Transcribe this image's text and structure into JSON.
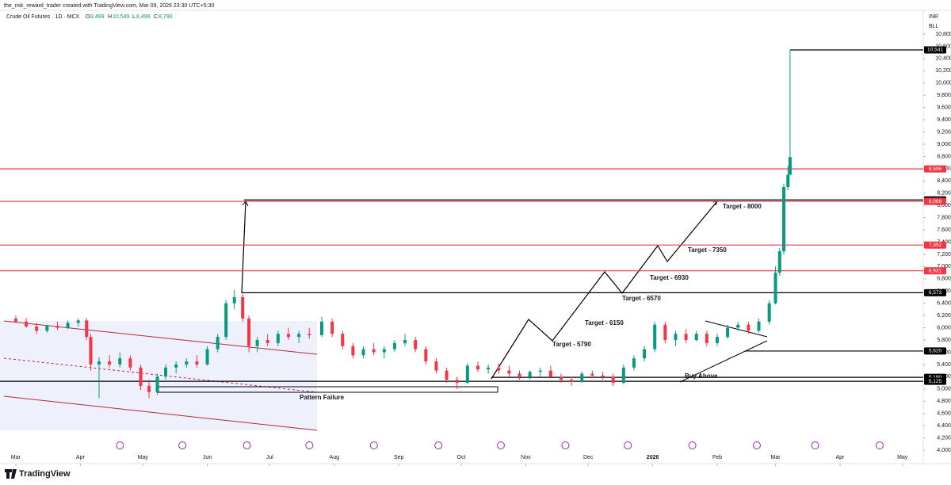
{
  "header": {
    "byline": "the_risk_reward_trader created with TradingView.com, Mar 09, 2026 23:30 UTC+5:30",
    "symbol": "Crude Oil Futures · 1D · MCX",
    "open_label": "O",
    "open": "8,499",
    "high_label": "H",
    "high": "10,549",
    "low_label": "L",
    "low": "8,499",
    "close_label": "C",
    "close": "8,790",
    "currency": "INR",
    "unit": "BLL"
  },
  "footer": {
    "brand": "TradingView"
  },
  "chart_data": {
    "type": "candlestick",
    "up_color": "#089981",
    "down_color": "#f23645",
    "xlim": [
      -7.6,
      436
    ],
    "ylim": [
      4000,
      10800
    ],
    "xticks": [
      {
        "value": 0,
        "label": "Mar"
      },
      {
        "value": 31,
        "label": "Apr"
      },
      {
        "value": 61,
        "label": "May"
      },
      {
        "value": 92,
        "label": "Jun"
      },
      {
        "value": 122,
        "label": "Jul"
      },
      {
        "value": 153,
        "label": "Aug"
      },
      {
        "value": 184,
        "label": "Sep"
      },
      {
        "value": 214,
        "label": "Oct"
      },
      {
        "value": 245,
        "label": "Nov"
      },
      {
        "value": 275,
        "label": "Dec"
      },
      {
        "value": 306,
        "label": "2026"
      },
      {
        "value": 337,
        "label": "Feb"
      },
      {
        "value": 365,
        "label": "Mar"
      },
      {
        "value": 396,
        "label": "Apr"
      },
      {
        "value": 426,
        "label": "May"
      }
    ],
    "yticks": [
      {
        "value": 4000,
        "label": "4,000"
      },
      {
        "value": 4200,
        "label": "4,200"
      },
      {
        "value": 4400,
        "label": "4,400"
      },
      {
        "value": 4600,
        "label": "4,600"
      },
      {
        "value": 4800,
        "label": "4,800"
      },
      {
        "value": 5000,
        "label": "5,000"
      },
      {
        "value": 5200,
        "label": "5,200"
      },
      {
        "value": 5400,
        "label": "5,400"
      },
      {
        "value": 5600,
        "label": "5,600"
      },
      {
        "value": 5800,
        "label": "5,800"
      },
      {
        "value": 6000,
        "label": "6,000"
      },
      {
        "value": 6200,
        "label": "6,200"
      },
      {
        "value": 6400,
        "label": "6,400"
      },
      {
        "value": 6600,
        "label": "6,600"
      },
      {
        "value": 6800,
        "label": "6,800"
      },
      {
        "value": 7000,
        "label": "7,000"
      },
      {
        "value": 7200,
        "label": "7,200"
      },
      {
        "value": 7400,
        "label": "7,400"
      },
      {
        "value": 7600,
        "label": "7,600"
      },
      {
        "value": 7800,
        "label": "7,800"
      },
      {
        "value": 8000,
        "label": "8,000"
      },
      {
        "value": 8200,
        "label": "8,200"
      },
      {
        "value": 8400,
        "label": "8,400"
      },
      {
        "value": 8600,
        "label": "8,600"
      },
      {
        "value": 8800,
        "label": "8,800"
      },
      {
        "value": 9000,
        "label": "9,000"
      },
      {
        "value": 9200,
        "label": "9,200"
      },
      {
        "value": 9400,
        "label": "9,400"
      },
      {
        "value": 9600,
        "label": "9,600"
      },
      {
        "value": 9800,
        "label": "9,800"
      },
      {
        "value": 10000,
        "label": "10,000"
      },
      {
        "value": 10200,
        "label": "10,200"
      },
      {
        "value": 10400,
        "label": "10,400"
      },
      {
        "value": 10600,
        "label": "10,600"
      },
      {
        "value": 10800,
        "label": "10,800"
      }
    ],
    "x": [
      0,
      5,
      10,
      15,
      20,
      25,
      30,
      34,
      36,
      40,
      45,
      50,
      55,
      60,
      64,
      68,
      72,
      77,
      82,
      87,
      92,
      97,
      101,
      105,
      109,
      112,
      116,
      121,
      126,
      131,
      136,
      141,
      147,
      152,
      157,
      162,
      167,
      172,
      177,
      182,
      187,
      192,
      197,
      202,
      207,
      212,
      217,
      222,
      227,
      232,
      237,
      242,
      247,
      252,
      257,
      262,
      267,
      272,
      277,
      282,
      287,
      292,
      297,
      302,
      307,
      312,
      317,
      322,
      327,
      332,
      337,
      342,
      347,
      352,
      357,
      362,
      365,
      367,
      369,
      371,
      372
    ],
    "open": [
      6150,
      6100,
      6020,
      5950,
      6030,
      6000,
      6080,
      6120,
      5850,
      5400,
      5450,
      5400,
      5500,
      5350,
      5050,
      4950,
      5200,
      5350,
      5400,
      5450,
      5400,
      5650,
      5850,
      6400,
      6500,
      6150,
      5700,
      5800,
      5750,
      5900,
      5850,
      5900,
      5880,
      6100,
      5900,
      5700,
      5550,
      5650,
      5600,
      5650,
      5750,
      5800,
      5650,
      5450,
      5300,
      5150,
      5100,
      5380,
      5320,
      5350,
      5300,
      5250,
      5200,
      5280,
      5300,
      5200,
      5150,
      5120,
      5250,
      5220,
      5200,
      5100,
      5350,
      5500,
      5650,
      6050,
      5800,
      5900,
      5800,
      5900,
      5750,
      5850,
      6000,
      6050,
      5950,
      6100,
      6400,
      6900,
      7250,
      8300,
      8499
    ],
    "high": [
      6200,
      6160,
      6080,
      6050,
      6100,
      6120,
      6150,
      6160,
      5900,
      5520,
      5550,
      5600,
      5550,
      5400,
      5150,
      5250,
      5400,
      5450,
      5500,
      5550,
      5700,
      5900,
      6450,
      6620,
      6550,
      6200,
      5850,
      5900,
      5950,
      6000,
      5950,
      6000,
      6180,
      6150,
      5950,
      5750,
      5700,
      5750,
      5700,
      5800,
      5900,
      5850,
      5700,
      5500,
      5350,
      5200,
      5420,
      5450,
      5400,
      5420,
      5380,
      5300,
      5300,
      5350,
      5380,
      5250,
      5200,
      5280,
      5300,
      5280,
      5250,
      5400,
      5550,
      5700,
      6100,
      6100,
      5950,
      5980,
      5950,
      5950,
      5900,
      6050,
      6100,
      6100,
      6150,
      6450,
      7000,
      7300,
      8350,
      8650,
      10549
    ],
    "low": [
      6080,
      6000,
      5900,
      5920,
      5960,
      5980,
      6020,
      5800,
      5300,
      4850,
      5350,
      5350,
      5300,
      4980,
      4850,
      4900,
      5150,
      5250,
      5350,
      5350,
      5380,
      5600,
      5800,
      6300,
      6100,
      5600,
      5600,
      5700,
      5700,
      5800,
      5750,
      5820,
      5850,
      5850,
      5650,
      5500,
      5500,
      5550,
      5500,
      5600,
      5700,
      5600,
      5400,
      5250,
      5100,
      5000,
      5080,
      5280,
      5250,
      5250,
      5200,
      5150,
      5150,
      5200,
      5180,
      5100,
      5050,
      5100,
      5180,
      5150,
      5050,
      5080,
      5300,
      5450,
      5600,
      5750,
      5700,
      5750,
      5780,
      5700,
      5700,
      5820,
      5950,
      5900,
      5920,
      6050,
      6380,
      6850,
      7200,
      8250,
      8499
    ],
    "close": [
      6100,
      6020,
      5950,
      6030,
      6000,
      6080,
      6120,
      5850,
      5400,
      5450,
      5400,
      5500,
      5350,
      5050,
      4950,
      5200,
      5350,
      5400,
      5450,
      5400,
      5650,
      5850,
      6400,
      6500,
      6150,
      5700,
      5800,
      5750,
      5900,
      5850,
      5900,
      5880,
      6100,
      5900,
      5700,
      5550,
      5650,
      5600,
      5650,
      5750,
      5800,
      5650,
      5450,
      5300,
      5150,
      5100,
      5380,
      5320,
      5350,
      5300,
      5250,
      5200,
      5280,
      5300,
      5200,
      5150,
      5120,
      5250,
      5220,
      5200,
      5100,
      5350,
      5500,
      5650,
      6050,
      5800,
      5900,
      5800,
      5900,
      5750,
      5850,
      6000,
      6050,
      5950,
      6100,
      6400,
      6900,
      7250,
      8300,
      8499,
      8790
    ],
    "levels": [
      {
        "value": 10541,
        "label": "10,541",
        "color": "#000000"
      },
      {
        "value": 8596,
        "label": "8,596",
        "color": "#f23645"
      },
      {
        "value": 8090,
        "label": "8,090",
        "color": "#000000"
      },
      {
        "value": 8066,
        "label": "8,066",
        "color": "#f23645"
      },
      {
        "value": 7352,
        "label": "7,352",
        "color": "#f23645"
      },
      {
        "value": 6931,
        "label": "6,931",
        "color": "#f23645"
      },
      {
        "value": 6573,
        "label": "6,573",
        "color": "#000000"
      },
      {
        "value": 5620,
        "label": "5,620",
        "color": "#000000"
      },
      {
        "value": 5190,
        "label": "5,190",
        "color": "#000000"
      },
      {
        "value": 5125,
        "label": "5,125",
        "color": "#000000"
      }
    ],
    "annotations": [
      "Target - 8000",
      "Target - 7350",
      "Target - 6930",
      "Target - 6570",
      "Target - 6150",
      "Target - 5790",
      "Buy Above",
      "Pattern Failure"
    ]
  }
}
